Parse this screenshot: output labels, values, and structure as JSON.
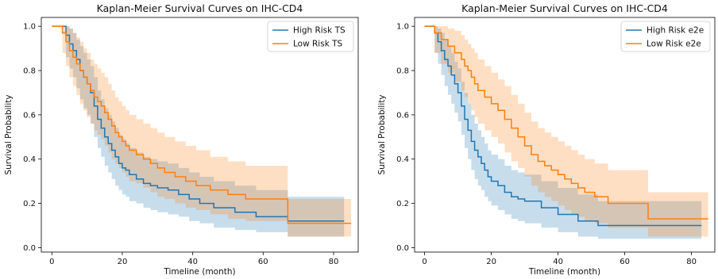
{
  "chart_data": [
    {
      "type": "line",
      "title": "Kaplan-Meier Survival Curves on IHC-CD4",
      "xlabel": "Timeline (month)",
      "ylabel": "Survival Probability",
      "xlim": [
        -3,
        87
      ],
      "ylim": [
        -0.02,
        1.04
      ],
      "xticks": [
        0,
        20,
        40,
        60,
        80
      ],
      "yticks": [
        0.0,
        0.2,
        0.4,
        0.6,
        0.8,
        1.0
      ],
      "grid": false,
      "legend_position": "top-right",
      "series": [
        {
          "name": "High Risk TS",
          "color": "#1f77b4",
          "x": [
            0,
            4,
            5,
            6,
            7,
            8,
            9,
            10,
            11,
            12,
            13,
            14,
            15,
            16,
            17,
            18,
            19,
            20,
            21,
            22,
            24,
            26,
            28,
            30,
            33,
            36,
            39,
            42,
            46,
            52,
            58,
            67,
            83
          ],
          "y": [
            1.0,
            0.96,
            0.92,
            0.89,
            0.85,
            0.8,
            0.77,
            0.74,
            0.7,
            0.64,
            0.58,
            0.54,
            0.5,
            0.47,
            0.44,
            0.41,
            0.38,
            0.36,
            0.35,
            0.33,
            0.31,
            0.29,
            0.28,
            0.27,
            0.26,
            0.24,
            0.22,
            0.2,
            0.18,
            0.16,
            0.14,
            0.12,
            0.12
          ],
          "ci_upper": [
            1.0,
            1.0,
            0.99,
            0.97,
            0.94,
            0.91,
            0.88,
            0.85,
            0.82,
            0.77,
            0.71,
            0.67,
            0.63,
            0.6,
            0.57,
            0.54,
            0.51,
            0.49,
            0.47,
            0.45,
            0.43,
            0.41,
            0.4,
            0.39,
            0.38,
            0.36,
            0.34,
            0.32,
            0.3,
            0.28,
            0.26,
            0.23,
            0.23
          ],
          "ci_lower": [
            1.0,
            0.86,
            0.81,
            0.77,
            0.72,
            0.67,
            0.63,
            0.6,
            0.56,
            0.5,
            0.45,
            0.41,
            0.37,
            0.34,
            0.31,
            0.28,
            0.26,
            0.24,
            0.23,
            0.21,
            0.2,
            0.18,
            0.17,
            0.16,
            0.15,
            0.14,
            0.12,
            0.11,
            0.09,
            0.08,
            0.07,
            0.05,
            0.05
          ]
        },
        {
          "name": "Low Risk TS",
          "color": "#ff7f0e",
          "x": [
            0,
            3,
            4,
            5,
            6,
            7,
            8,
            9,
            10,
            11,
            12,
            13,
            14,
            15,
            16,
            17,
            18,
            19,
            20,
            21,
            22,
            24,
            26,
            28,
            30,
            32,
            35,
            38,
            41,
            45,
            50,
            55,
            67,
            85
          ],
          "y": [
            1.0,
            0.97,
            0.93,
            0.89,
            0.86,
            0.83,
            0.8,
            0.77,
            0.74,
            0.71,
            0.68,
            0.66,
            0.64,
            0.61,
            0.58,
            0.55,
            0.52,
            0.5,
            0.48,
            0.46,
            0.44,
            0.42,
            0.4,
            0.38,
            0.36,
            0.34,
            0.32,
            0.3,
            0.28,
            0.26,
            0.24,
            0.22,
            0.11,
            0.11
          ],
          "ci_upper": [
            1.0,
            1.0,
            1.0,
            0.99,
            0.97,
            0.95,
            0.93,
            0.9,
            0.88,
            0.85,
            0.83,
            0.81,
            0.79,
            0.77,
            0.74,
            0.71,
            0.68,
            0.66,
            0.64,
            0.62,
            0.6,
            0.58,
            0.56,
            0.54,
            0.52,
            0.5,
            0.48,
            0.46,
            0.44,
            0.41,
            0.39,
            0.37,
            0.22,
            0.22
          ],
          "ci_lower": [
            1.0,
            0.88,
            0.82,
            0.77,
            0.73,
            0.69,
            0.65,
            0.62,
            0.59,
            0.56,
            0.53,
            0.51,
            0.49,
            0.46,
            0.43,
            0.4,
            0.38,
            0.36,
            0.34,
            0.32,
            0.3,
            0.29,
            0.27,
            0.25,
            0.23,
            0.22,
            0.2,
            0.18,
            0.17,
            0.15,
            0.13,
            0.12,
            0.05,
            0.04
          ]
        }
      ]
    },
    {
      "type": "line",
      "title": "Kaplan-Meier Survival Curves on IHC-CD4",
      "xlabel": "Timeline (month)",
      "ylabel": "Survival Probability",
      "xlim": [
        -3,
        87
      ],
      "ylim": [
        -0.02,
        1.04
      ],
      "xticks": [
        0,
        20,
        40,
        60,
        80
      ],
      "yticks": [
        0.0,
        0.2,
        0.4,
        0.6,
        0.8,
        1.0
      ],
      "grid": false,
      "legend_position": "top-right",
      "series": [
        {
          "name": "High Risk e2e",
          "color": "#1f77b4",
          "x": [
            0,
            3,
            4,
            5,
            6,
            7,
            8,
            9,
            10,
            11,
            12,
            13,
            14,
            15,
            16,
            17,
            18,
            19,
            20,
            22,
            24,
            26,
            28,
            30,
            35,
            40,
            46,
            52,
            83
          ],
          "y": [
            1.0,
            0.97,
            0.93,
            0.89,
            0.85,
            0.82,
            0.78,
            0.74,
            0.7,
            0.64,
            0.58,
            0.53,
            0.48,
            0.44,
            0.41,
            0.38,
            0.35,
            0.32,
            0.3,
            0.28,
            0.25,
            0.23,
            0.22,
            0.21,
            0.18,
            0.15,
            0.12,
            0.1,
            0.1
          ],
          "ci_upper": [
            1.0,
            1.0,
            0.99,
            0.97,
            0.94,
            0.91,
            0.88,
            0.84,
            0.81,
            0.75,
            0.7,
            0.65,
            0.6,
            0.56,
            0.53,
            0.5,
            0.47,
            0.44,
            0.42,
            0.4,
            0.37,
            0.35,
            0.34,
            0.33,
            0.3,
            0.27,
            0.24,
            0.21,
            0.21
          ],
          "ci_lower": [
            1.0,
            0.88,
            0.83,
            0.78,
            0.73,
            0.69,
            0.65,
            0.61,
            0.57,
            0.51,
            0.45,
            0.4,
            0.35,
            0.31,
            0.28,
            0.26,
            0.23,
            0.21,
            0.19,
            0.17,
            0.15,
            0.13,
            0.12,
            0.11,
            0.09,
            0.07,
            0.05,
            0.04,
            0.04
          ]
        },
        {
          "name": "Low Risk e2e",
          "color": "#ff7f0e",
          "x": [
            0,
            3,
            5,
            7,
            9,
            11,
            12,
            13,
            14,
            15,
            16,
            18,
            20,
            22,
            24,
            26,
            28,
            30,
            32,
            34,
            36,
            38,
            40,
            42,
            44,
            46,
            48,
            51,
            55,
            67,
            85
          ],
          "y": [
            1.0,
            0.97,
            0.94,
            0.91,
            0.88,
            0.85,
            0.82,
            0.8,
            0.77,
            0.74,
            0.71,
            0.68,
            0.65,
            0.62,
            0.58,
            0.54,
            0.5,
            0.46,
            0.42,
            0.39,
            0.37,
            0.35,
            0.33,
            0.31,
            0.29,
            0.27,
            0.25,
            0.23,
            0.2,
            0.13,
            0.13
          ],
          "ci_upper": [
            1.0,
            1.0,
            1.0,
            0.99,
            0.98,
            0.96,
            0.94,
            0.92,
            0.9,
            0.88,
            0.85,
            0.82,
            0.79,
            0.76,
            0.73,
            0.69,
            0.65,
            0.61,
            0.57,
            0.54,
            0.52,
            0.5,
            0.48,
            0.46,
            0.44,
            0.42,
            0.4,
            0.38,
            0.35,
            0.25,
            0.25
          ],
          "ci_lower": [
            1.0,
            0.88,
            0.83,
            0.79,
            0.75,
            0.71,
            0.68,
            0.65,
            0.62,
            0.59,
            0.56,
            0.53,
            0.5,
            0.47,
            0.43,
            0.39,
            0.36,
            0.32,
            0.28,
            0.25,
            0.23,
            0.21,
            0.19,
            0.17,
            0.15,
            0.14,
            0.12,
            0.11,
            0.09,
            0.05,
            0.05
          ]
        }
      ]
    }
  ]
}
